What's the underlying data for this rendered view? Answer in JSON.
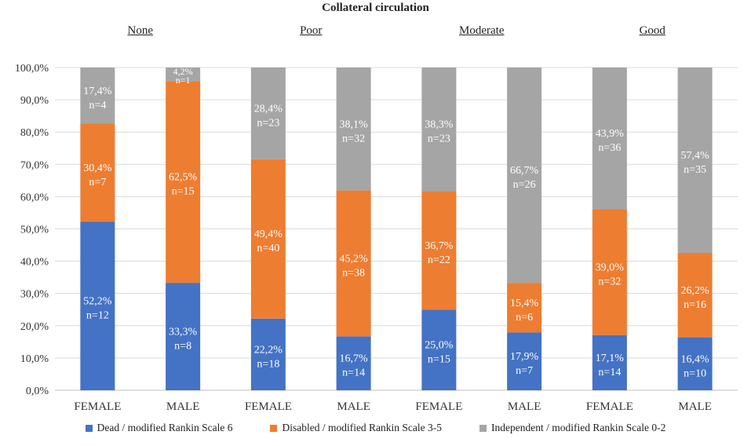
{
  "chart_data": {
    "type": "bar",
    "stacked": true,
    "title": "Collateral circulation",
    "groups": [
      "None",
      "Poor",
      "Moderate",
      "Good"
    ],
    "categories": [
      "FEMALE",
      "MALE",
      "FEMALE",
      "MALE",
      "FEMALE",
      "MALE",
      "FEMALE",
      "MALE"
    ],
    "ylim": [
      0,
      100
    ],
    "yticks": [
      "0,0%",
      "10,0%",
      "20,0%",
      "30,0%",
      "40,0%",
      "50,0%",
      "60,0%",
      "70,0%",
      "80,0%",
      "90,0%",
      "100,0%"
    ],
    "grid": true,
    "legend_position": "bottom",
    "series": [
      {
        "name": "Dead / modified Rankin Scale 6",
        "color": "#4472C4",
        "values": [
          52.2,
          33.3,
          22.2,
          16.7,
          25.0,
          17.9,
          17.1,
          16.4
        ],
        "pct_labels": [
          "52,2%",
          "33,3%",
          "22,2%",
          "16,7%",
          "25,0%",
          "17,9%",
          "17,1%",
          "16,4%"
        ],
        "n_labels": [
          "n=12",
          "n=8",
          "n=18",
          "n=14",
          "n=15",
          "n=7",
          "n=14",
          "n=10"
        ]
      },
      {
        "name": "Disabled / modified Rankin Scale 3-5",
        "color": "#ED7D31",
        "values": [
          30.4,
          62.5,
          49.4,
          45.2,
          36.7,
          15.4,
          39.0,
          26.2
        ],
        "pct_labels": [
          "30,4%",
          "62,5%",
          "49,4%",
          "45,2%",
          "36,7%",
          "15,4%",
          "39,0%",
          "26,2%"
        ],
        "n_labels": [
          "n=7",
          "n=15",
          "n=40",
          "n=38",
          "n=22",
          "n=6",
          "n=32",
          "n=16"
        ]
      },
      {
        "name": "Independent / modified Rankin Scale 0-2",
        "color": "#A5A5A5",
        "values": [
          17.4,
          4.2,
          28.4,
          38.1,
          38.3,
          66.7,
          43.9,
          57.4
        ],
        "pct_labels": [
          "17,4%",
          "4,2%",
          "28,4%",
          "38,1%",
          "38,3%",
          "66,7%",
          "43,9%",
          "57,4%"
        ],
        "n_labels": [
          "n=4",
          "n=1",
          "n=23",
          "n=32",
          "n=23",
          "n=26",
          "n=36",
          "n=35"
        ]
      }
    ]
  }
}
